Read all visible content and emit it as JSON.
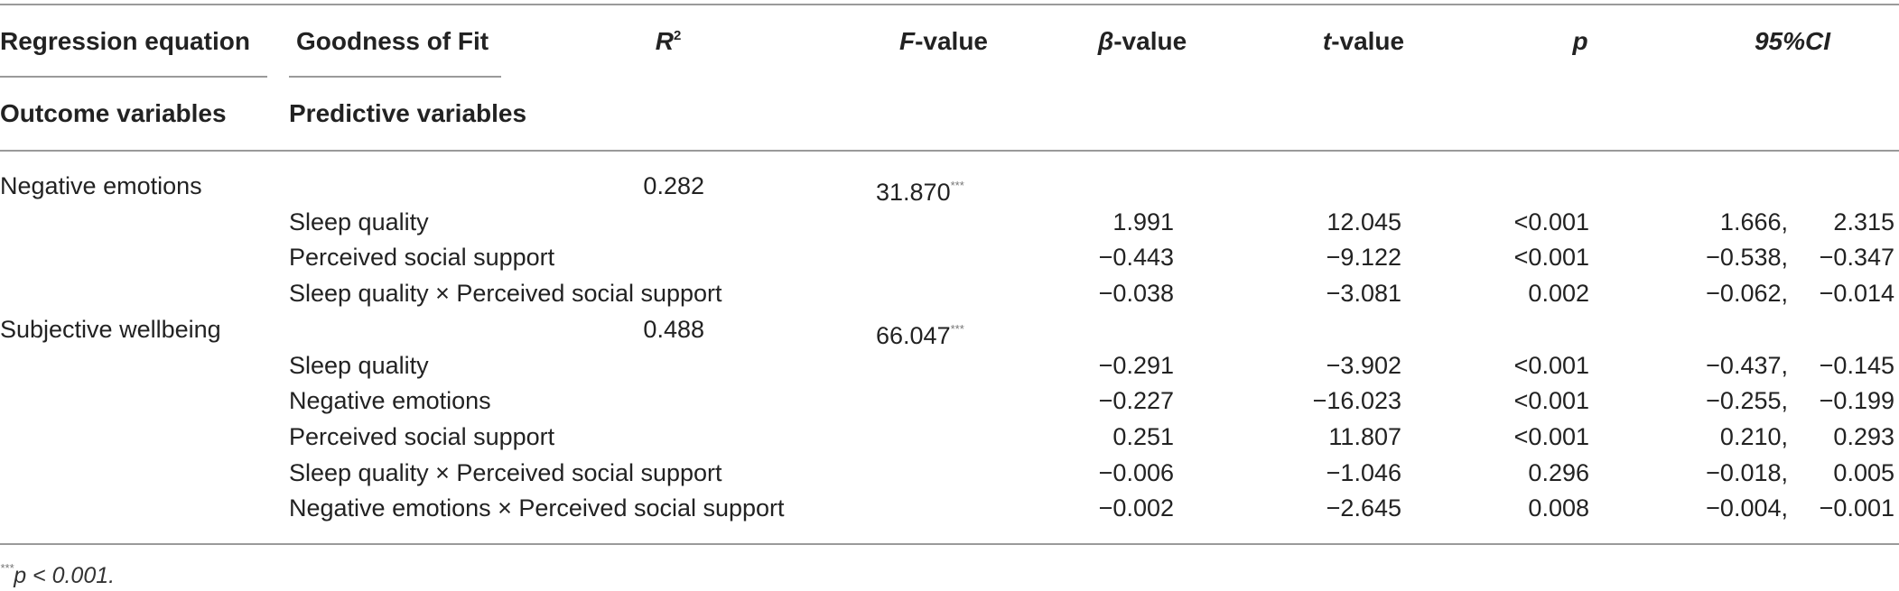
{
  "table": {
    "headers": {
      "col1_top": "Regression equation",
      "col2_top": "Goodness of Fit",
      "r2_base": "R",
      "r2_sup": "2",
      "f_italic": "F",
      "f_rest": "-value",
      "beta_italic": "β",
      "beta_rest": "-value",
      "t_italic": "t",
      "t_rest": "-value",
      "p": "p",
      "ci": "95%CI",
      "col1_bottom": "Outcome variables",
      "col2_bottom": "Predictive variables"
    },
    "rows": [
      {
        "outcome": "Negative emotions",
        "predictor": "",
        "r2": "0.282",
        "f": "31.870",
        "f_stars": "***",
        "beta": "",
        "t": "",
        "p": "",
        "ci_lo": "",
        "ci_hi": ""
      },
      {
        "outcome": "",
        "predictor": "Sleep quality",
        "r2": "",
        "f": "",
        "f_stars": "",
        "beta": "1.991",
        "t": "12.045",
        "p": "<0.001",
        "ci_lo": "1.666,",
        "ci_hi": "2.315"
      },
      {
        "outcome": "",
        "predictor": "Perceived social support",
        "r2": "",
        "f": "",
        "f_stars": "",
        "beta": "−0.443",
        "t": "−9.122",
        "p": "<0.001",
        "ci_lo": "−0.538,",
        "ci_hi": "−0.347"
      },
      {
        "outcome": "",
        "predictor": "Sleep quality × Perceived social support",
        "r2": "",
        "f": "",
        "f_stars": "",
        "beta": "−0.038",
        "t": "−3.081",
        "p": "0.002",
        "ci_lo": "−0.062,",
        "ci_hi": "−0.014"
      },
      {
        "outcome": "Subjective wellbeing",
        "predictor": "",
        "r2": "0.488",
        "f": "66.047",
        "f_stars": "***",
        "beta": "",
        "t": "",
        "p": "",
        "ci_lo": "",
        "ci_hi": ""
      },
      {
        "outcome": "",
        "predictor": "Sleep quality",
        "r2": "",
        "f": "",
        "f_stars": "",
        "beta": "−0.291",
        "t": "−3.902",
        "p": "<0.001",
        "ci_lo": "−0.437,",
        "ci_hi": "−0.145"
      },
      {
        "outcome": "",
        "predictor": "Negative emotions",
        "r2": "",
        "f": "",
        "f_stars": "",
        "beta": "−0.227",
        "t": "−16.023",
        "p": "<0.001",
        "ci_lo": "−0.255,",
        "ci_hi": "−0.199"
      },
      {
        "outcome": "",
        "predictor": "Perceived social support",
        "r2": "",
        "f": "",
        "f_stars": "",
        "beta": "0.251",
        "t": "11.807",
        "p": "<0.001",
        "ci_lo": "0.210,",
        "ci_hi": "0.293"
      },
      {
        "outcome": "",
        "predictor": "Sleep quality × Perceived social support",
        "r2": "",
        "f": "",
        "f_stars": "",
        "beta": "−0.006",
        "t": "−1.046",
        "p": "0.296",
        "ci_lo": "−0.018,",
        "ci_hi": "0.005"
      },
      {
        "outcome": "",
        "predictor": "Negative emotions × Perceived social support",
        "r2": "",
        "f": "",
        "f_stars": "",
        "beta": "−0.002",
        "t": "−2.645",
        "p": "0.008",
        "ci_lo": "−0.004,",
        "ci_hi": "−0.001"
      }
    ],
    "footnote": {
      "stars": "***",
      "text": "p < 0.001."
    }
  }
}
